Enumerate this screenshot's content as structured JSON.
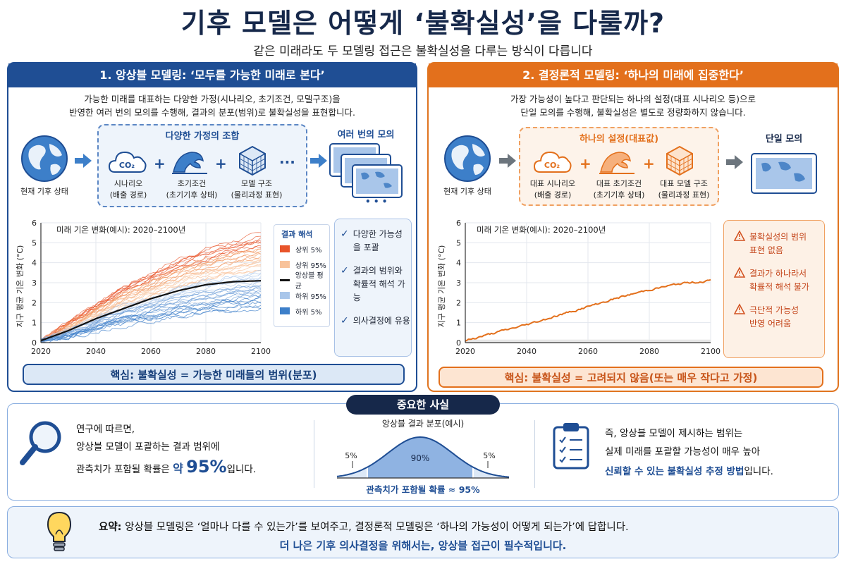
{
  "header": {
    "title": "기후 모델은 어떻게 ‘불확실성’을 다룰까?",
    "subtitle": "같은 미래라도 두 모델링 접근은 불확실성을 다루는 방식이 다릅니다"
  },
  "left": {
    "heading": "1. 앙상블 모델링: ‘모두를 가능한 미래로 본다’",
    "desc1": "가능한 미래를 대표하는 다양한 가정(시나리오, 초기조건, 모델구조)을",
    "desc2": "반영한 여러 번의 모의를 수행해, 결과의 분포(범위)로 불확실성을 표현합니다.",
    "start_label": "현재 기후 상태",
    "box_title": "다양한 가정의 조합",
    "co2": "CO₂",
    "items": [
      {
        "l1": "시나리오",
        "l2": "(배출 경로)"
      },
      {
        "l1": "초기조건",
        "l2": "(초기기후 상태)"
      },
      {
        "l1": "모델 구조",
        "l2": "(물리과정 표현)"
      }
    ],
    "plus": "+",
    "ellipsis": "···",
    "runs_title": "여러 번의 모의",
    "more_dots": "• • •",
    "chart_caption": "미래 기온 변화(예시): 2020–2100년",
    "ylabel": "지구 평균 기온 변화 (°C)",
    "legend_title": "결과 해석",
    "legend": [
      "상위 5%",
      "상위 95%",
      "앙상블 평균",
      "하위 95%",
      "하위 5%"
    ],
    "checks": [
      {
        "l1": "다양한 가능성",
        "l2": "을 포괄"
      },
      {
        "l1": "결과의 범위와",
        "l2": "확률적 해석 가능"
      },
      {
        "l1": "의사결정에 유용",
        "l2": ""
      }
    ],
    "check_mark": "✓",
    "key": "핵심: 불확실성 = 가능한 미래들의 범위(분포)"
  },
  "right": {
    "heading": "2. 결정론적 모델링: ‘하나의 미래에 집중한다’",
    "desc1": "가장 가능성이 높다고 판단되는 하나의 설정(대표 시나리오 등)으로",
    "desc2": "단일 모의를 수행해, 불확실성은 별도로 정량화하지 않습니다.",
    "start_label": "현재 기후 상태",
    "box_title": "하나의 설정(대표값)",
    "co2": "CO₂",
    "items": [
      {
        "l1": "대표 시나리오",
        "l2": "(배출 경로)"
      },
      {
        "l1": "대표 초기조건",
        "l2": "(초기기후 상태)"
      },
      {
        "l1": "대표 모델 구조",
        "l2": "(물리과정 표현)"
      }
    ],
    "plus": "+",
    "run_title": "단일 모의",
    "chart_caption": "미래 기온 변화(예시): 2020–2100년",
    "ylabel": "지구 평균 기온 변화 (°C)",
    "warnings": [
      {
        "l1": "불확실성의 범위",
        "l2": "표현 없음"
      },
      {
        "l1": "결과가 하나라서",
        "l2": "확률적 해석 불가"
      },
      {
        "l1": "극단적 가능성",
        "l2": "반영 어려움"
      }
    ],
    "key": "핵심: 불확실성 = 고려되지 않음(또는 매우 작다고 가정)"
  },
  "facts": {
    "tag": "중요한 사실",
    "l1": "연구에 따르면,",
    "l2": "앙상블 모델이 포괄하는 결과 범위에",
    "l3a": "관측치가 포함될 확률은",
    "l3b": "약",
    "l3c": "95%",
    "l3d": "입니다.",
    "dist_title": "앙상블 결과 분포(예시)",
    "p5_left": "5%",
    "p90": "90%",
    "p5_right": "5%",
    "dist_caption": "관측치가 포함될 확률 ≈ 95%",
    "r1": "즉, 앙상블 모델이 제시하는 범위는",
    "r2": "실제 미래를 포괄할 가능성이 매우 높아",
    "r3a": "신뢰할 수 있는 불확실성 추정 방법",
    "r3b": "입니다."
  },
  "summary": {
    "label": "요약:",
    "text": "앙상블 모델링은 ‘얼마나 다를 수 있는가’를 보여주고, 결정론적 모델링은 ‘하나의 가능성이 어떻게 되는가’에 답합니다.",
    "line2": "더 나은 기후 의사결정을 위해서는, 앙상블 접근이 필수적입니다."
  },
  "colors": {
    "blue": "#1f4e94",
    "orange": "#e3701c",
    "navy": "#16284a"
  },
  "chart_data": [
    {
      "type": "line",
      "x": [
        2020,
        2030,
        2040,
        2050,
        2060,
        2070,
        2080,
        2090,
        2100
      ],
      "series": [
        {
          "name": "상위 5%",
          "values": [
            0.1,
            1.0,
            1.9,
            2.8,
            3.5,
            4.2,
            4.7,
            5.1,
            5.4
          ]
        },
        {
          "name": "상위 95%",
          "values": [
            0.1,
            0.8,
            1.5,
            2.1,
            2.7,
            3.1,
            3.4,
            3.6,
            3.8
          ]
        },
        {
          "name": "앙상블 평균",
          "values": [
            0.1,
            0.6,
            1.2,
            1.7,
            2.2,
            2.6,
            2.9,
            3.05,
            3.1
          ]
        },
        {
          "name": "하위 95%",
          "values": [
            0.1,
            0.45,
            0.9,
            1.3,
            1.7,
            2.0,
            2.2,
            2.4,
            2.5
          ]
        },
        {
          "name": "하위 5%",
          "values": [
            0.1,
            0.3,
            0.6,
            0.9,
            1.1,
            1.3,
            1.5,
            1.6,
            1.7
          ]
        }
      ],
      "xlim": [
        2020,
        2100
      ],
      "ylim": [
        0,
        6
      ],
      "xticks": [
        2020,
        2040,
        2060,
        2080,
        2100
      ],
      "yticks": [
        0,
        1,
        2,
        3,
        4,
        5,
        6
      ]
    },
    {
      "type": "line",
      "x": [
        2020,
        2030,
        2040,
        2050,
        2060,
        2070,
        2080,
        2090,
        2100
      ],
      "series": [
        {
          "values": [
            0.1,
            0.5,
            0.9,
            1.35,
            1.8,
            2.25,
            2.65,
            2.95,
            3.1
          ]
        }
      ],
      "xlim": [
        2020,
        2100
      ],
      "ylim": [
        0,
        6
      ],
      "xticks": [
        2020,
        2040,
        2060,
        2080,
        2100
      ],
      "yticks": [
        0,
        1,
        2,
        3,
        4,
        5,
        6
      ]
    },
    {
      "type": "area",
      "title": "앙상블 결과 분포(예시)",
      "segments": [
        {
          "label": "5%",
          "value": 5
        },
        {
          "label": "90%",
          "value": 90
        },
        {
          "label": "5%",
          "value": 5
        }
      ]
    }
  ]
}
